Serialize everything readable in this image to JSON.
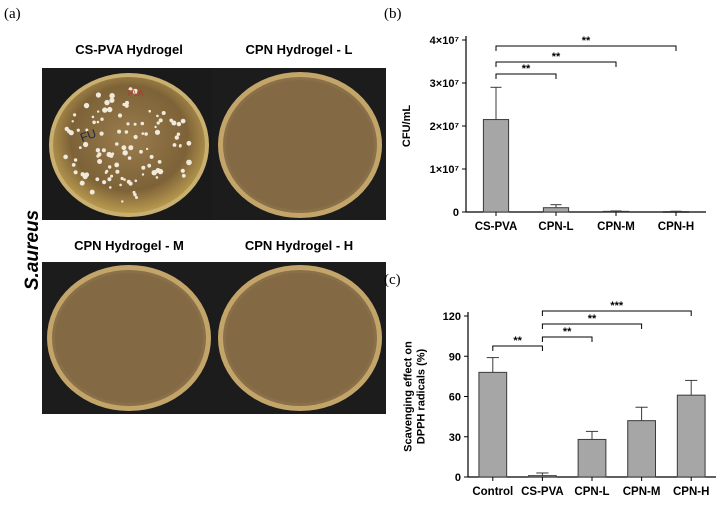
{
  "panel_a": {
    "label": "(a)",
    "side_label": "S.aureus",
    "plates": [
      {
        "title": "CS-PVA Hydrogel",
        "colonies": "many"
      },
      {
        "title": "CPN Hydrogel - L",
        "colonies": "none"
      },
      {
        "title": "CPN Hydrogel - M",
        "colonies": "none"
      },
      {
        "title": "CPN Hydrogel - H",
        "colonies": "none"
      }
    ]
  },
  "panel_b": {
    "label": "(b)"
  },
  "panel_c": {
    "label": "(c)"
  },
  "colors": {
    "bar": "#a6a6a6",
    "bar_edge": "#3a3a3a",
    "agar": "#8a7048",
    "background": "#ffffff"
  },
  "chart_data": [
    {
      "type": "bar",
      "ylabel": "CFU/mL",
      "categories": [
        "CS-PVA",
        "CPN-L",
        "CPN-M",
        "CPN-H"
      ],
      "values": [
        21500000,
        1000000,
        150000,
        100000
      ],
      "errors": [
        7500000,
        700000,
        100000,
        80000
      ],
      "ylim": [
        0,
        40000000
      ],
      "yticks": [
        0,
        10000000,
        20000000,
        30000000,
        40000000
      ],
      "ytick_labels": [
        "0",
        "1×10⁷",
        "2×10⁷",
        "3×10⁷",
        "4×10⁷"
      ],
      "significance": [
        {
          "from": 0,
          "to": 1,
          "label": "**"
        },
        {
          "from": 0,
          "to": 2,
          "label": "**"
        },
        {
          "from": 0,
          "to": 3,
          "label": "**"
        }
      ]
    },
    {
      "type": "bar",
      "ylabel": "Scavenging effect on DPPH radicals (%)",
      "categories": [
        "Control",
        "CS-PVA",
        "CPN-L",
        "CPN-M",
        "CPN-H"
      ],
      "values": [
        78,
        1,
        28,
        42,
        61
      ],
      "errors": [
        11,
        2,
        6,
        10,
        11
      ],
      "ylim": [
        0,
        120
      ],
      "yticks": [
        0,
        30,
        60,
        90,
        120
      ],
      "ytick_labels": [
        "0",
        "30",
        "60",
        "90",
        "120"
      ],
      "significance": [
        {
          "from": 0,
          "to": 1,
          "label": "**"
        },
        {
          "from": 1,
          "to": 2,
          "label": "**"
        },
        {
          "from": 1,
          "to": 3,
          "label": "**"
        },
        {
          "from": 1,
          "to": 4,
          "label": "***"
        }
      ]
    }
  ]
}
